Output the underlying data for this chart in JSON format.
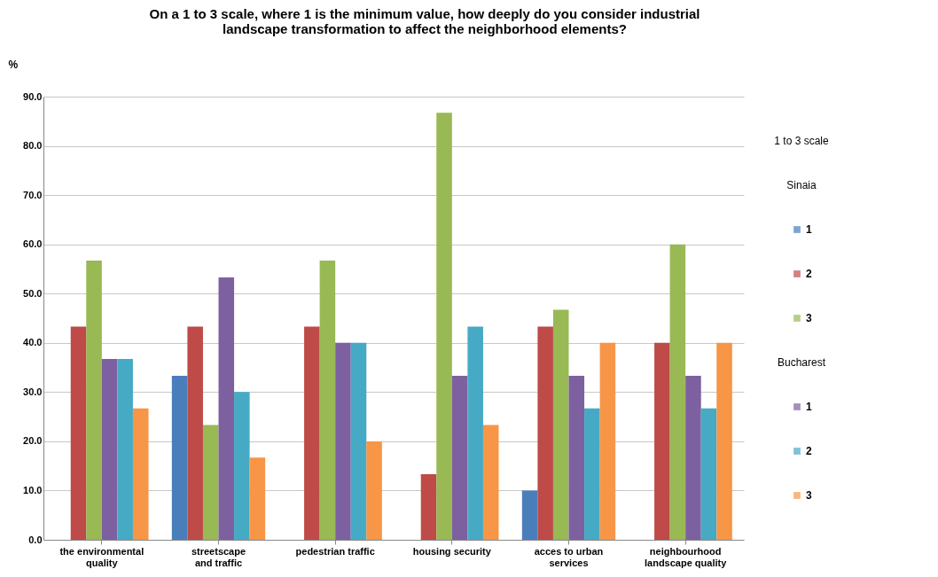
{
  "chart_data": {
    "type": "bar",
    "title": [
      "On a 1 to 3 scale, where 1 is the minimum value, how deeply do you consider industrial",
      "landscape transformation to affect the neighborhood elements?"
    ],
    "ylabel": "%",
    "legend_title": "1 to 3 scale",
    "annotations": [
      "Sinaia",
      "Bucharest"
    ],
    "categories": [
      "the environmental quality",
      "streetscape and traffic",
      "pedestrian traffic",
      "housing security",
      "acces to urban services",
      "neighbourhood landscape quality"
    ],
    "series": [
      {
        "name": "1",
        "color": "#4a7ebb",
        "values": [
          0,
          33.3,
          0,
          0,
          10.0,
          0
        ]
      },
      {
        "name": "2",
        "color": "#be4b48",
        "values": [
          43.3,
          43.3,
          43.3,
          13.3,
          43.3,
          40.0
        ]
      },
      {
        "name": "3",
        "color": "#98b954",
        "values": [
          56.7,
          23.3,
          56.7,
          86.7,
          46.7,
          60.0
        ]
      },
      {
        "name": "1",
        "color": "#7d60a0",
        "values": [
          36.7,
          53.3,
          40.0,
          33.3,
          33.3,
          33.3
        ]
      },
      {
        "name": "2",
        "color": "#46aac5",
        "values": [
          36.7,
          30.0,
          40.0,
          43.3,
          26.7,
          26.7
        ]
      },
      {
        "name": "3",
        "color": "#f79646",
        "values": [
          26.7,
          16.7,
          20.0,
          23.3,
          40.0,
          40.0
        ]
      }
    ],
    "ylim": [
      0,
      90
    ],
    "yticks": [
      {
        "value": 0,
        "label": "0.0"
      },
      {
        "value": 10,
        "label": "10.0"
      },
      {
        "value": 20,
        "label": "20.0"
      },
      {
        "value": 30,
        "label": "30.0"
      },
      {
        "value": 40,
        "label": "40.0"
      },
      {
        "value": 50,
        "label": "50.0"
      },
      {
        "value": 60,
        "label": "60.0"
      },
      {
        "value": 70,
        "label": "70.0"
      },
      {
        "value": 80,
        "label": "80.0"
      },
      {
        "value": 90,
        "label": "90.0"
      }
    ],
    "grid": "y",
    "legend": "right"
  }
}
